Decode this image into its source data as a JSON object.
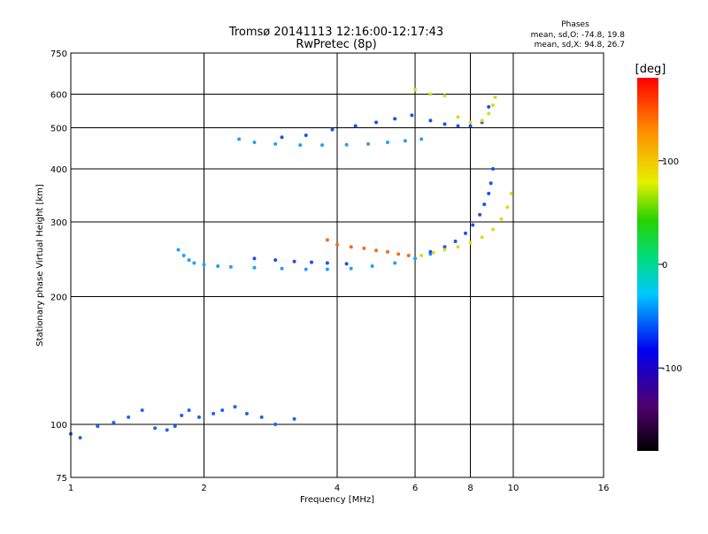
{
  "chart_data": {
    "type": "scatter",
    "title": "Tromsø 20141113 12:16:00-12:17:43",
    "subtitle": "RwPretec (8p)",
    "xlabel": "Frequency [MHz]",
    "ylabel": "Stationary phase Virtual Height [km]",
    "x_scale": "log",
    "y_scale": "log",
    "xlim": [
      1,
      16
    ],
    "ylim": [
      75,
      750
    ],
    "x_ticks": [
      1,
      2,
      4,
      6,
      8,
      10,
      16
    ],
    "x_tick_labels": [
      "1",
      "2",
      "4",
      "6",
      "8",
      "10",
      "16"
    ],
    "y_ticks": [
      75,
      100,
      200,
      300,
      400,
      500,
      600,
      750
    ],
    "y_tick_labels": [
      "75",
      "100",
      "200",
      "300",
      "400",
      "500",
      "600",
      "750"
    ],
    "grid": true,
    "stats": {
      "heading": "Phases",
      "line_o": "mean, sd,O: -74.8, 19.8",
      "line_x": "mean, sd,X:  94.8, 26.7"
    },
    "colorbar": {
      "label": "[deg]",
      "range": [
        -180,
        180
      ],
      "ticks": [
        100,
        0,
        -100
      ],
      "tick_labels": [
        "100",
        "0",
        "-100"
      ]
    },
    "traces": [
      {
        "name": "",
        "color": "#1e64f0",
        "x": [
          1.0,
          1.05,
          1.15,
          1.25,
          1.35,
          1.45,
          1.55,
          1.65,
          1.72,
          1.78,
          1.85,
          1.95,
          2.1,
          2.2,
          2.35,
          2.5,
          2.7,
          2.9,
          3.2
        ],
        "y": [
          95,
          93,
          99,
          101,
          104,
          108,
          98,
          97,
          99,
          105,
          108,
          104,
          106,
          108,
          110,
          106,
          104,
          100,
          103
        ]
      },
      {
        "name": "",
        "color": "#1ea0ff",
        "x": [
          1.75,
          1.8,
          1.85,
          1.9,
          2.0,
          2.15,
          2.3,
          2.6,
          3.0,
          3.4,
          3.8,
          4.3,
          4.8,
          5.4,
          6.0,
          6.5
        ],
        "y": [
          258,
          250,
          244,
          240,
          238,
          236,
          235,
          234,
          233,
          232,
          232,
          233,
          236,
          240,
          246,
          252
        ]
      },
      {
        "name": "",
        "color": "#1e50e6",
        "x": [
          2.6,
          2.9,
          3.2,
          3.5,
          3.8,
          4.2,
          6.5,
          7.0,
          7.4,
          7.8,
          8.1,
          8.4,
          8.6,
          8.8,
          8.9,
          9.0
        ],
        "y": [
          246,
          244,
          242,
          241,
          240,
          239,
          255,
          262,
          270,
          282,
          295,
          312,
          330,
          350,
          370,
          400
        ]
      },
      {
        "name": "",
        "color": "#f06e1e",
        "x": [
          3.8,
          4.0,
          4.3,
          4.6,
          4.9,
          5.2,
          5.5,
          5.8
        ],
        "y": [
          272,
          265,
          262,
          260,
          257,
          255,
          252,
          250
        ]
      },
      {
        "name": "",
        "color": "#dcdc1e",
        "x": [
          6.2,
          6.6,
          7.0,
          7.5,
          8.0,
          8.5,
          9.0,
          9.4,
          9.7,
          9.9
        ],
        "y": [
          250,
          254,
          258,
          262,
          268,
          276,
          288,
          305,
          325,
          350
        ]
      },
      {
        "name": "",
        "color": "#28a0f0",
        "x": [
          2.4,
          2.6,
          2.9,
          3.3,
          3.7,
          4.2,
          4.7,
          5.2,
          5.7,
          6.2
        ],
        "y": [
          470,
          462,
          458,
          455,
          455,
          456,
          458,
          462,
          466,
          470
        ]
      },
      {
        "name": "",
        "color": "#1e50e6",
        "x": [
          3.0,
          3.4,
          3.9,
          4.4,
          4.9,
          5.4,
          5.9,
          6.5,
          7.0,
          7.5,
          8.0,
          8.5,
          8.8
        ],
        "y": [
          475,
          480,
          495,
          505,
          515,
          525,
          535,
          520,
          510,
          505,
          505,
          515,
          560
        ]
      },
      {
        "name": "",
        "color": "#d2dc1e",
        "x": [
          6.0,
          6.5,
          7.0,
          7.5,
          8.0,
          8.5,
          8.8,
          9.0,
          9.1
        ],
        "y": [
          615,
          600,
          595,
          530,
          515,
          520,
          540,
          565,
          590
        ]
      }
    ]
  }
}
